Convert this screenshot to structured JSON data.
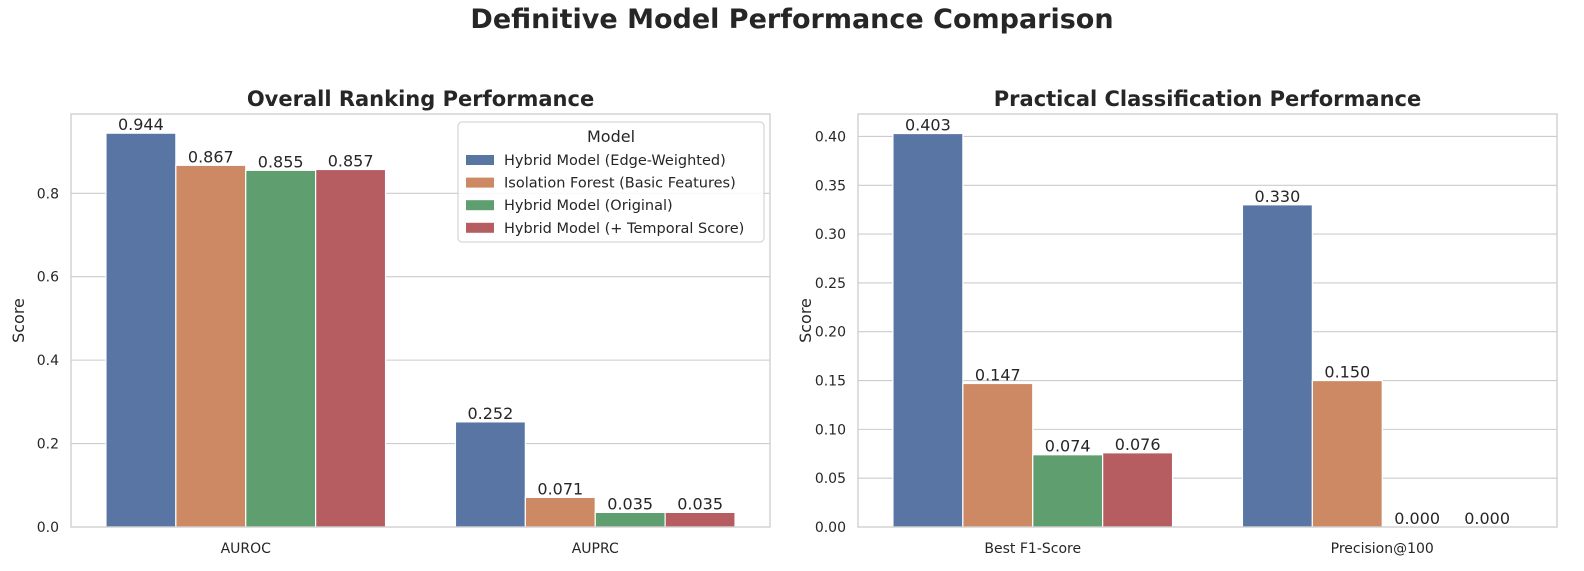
{
  "figure": {
    "title": "Definitive Model Performance Comparison"
  },
  "colors": {
    "series": [
      "#5875a4",
      "#cc8963",
      "#5f9e6e",
      "#b55d60"
    ],
    "grid": "#cccccc",
    "spine": "#cccccc"
  },
  "chart_data": [
    {
      "type": "bar",
      "title": "Overall Ranking Performance",
      "xlabel": "",
      "ylabel": "Score",
      "ylim": [
        0,
        0.99
      ],
      "yticks": [
        0.0,
        0.2,
        0.4,
        0.6,
        0.8
      ],
      "yticklabels": [
        "0.0",
        "0.2",
        "0.4",
        "0.6",
        "0.8"
      ],
      "grid": true,
      "legend": {
        "title": "Model",
        "position": "top-right"
      },
      "categories": [
        "AUROC",
        "AUPRC"
      ],
      "series": [
        {
          "name": "Hybrid Model (Edge-Weighted)",
          "values": [
            0.944,
            0.252
          ],
          "labels": [
            "0.944",
            "0.252"
          ]
        },
        {
          "name": "Isolation Forest (Basic Features)",
          "values": [
            0.867,
            0.071
          ],
          "labels": [
            "0.867",
            "0.071"
          ]
        },
        {
          "name": "Hybrid Model (Original)",
          "values": [
            0.855,
            0.035
          ],
          "labels": [
            "0.855",
            "0.035"
          ]
        },
        {
          "name": "Hybrid Model (+ Temporal Score)",
          "values": [
            0.857,
            0.035
          ],
          "labels": [
            "0.857",
            "0.035"
          ]
        }
      ]
    },
    {
      "type": "bar",
      "title": "Practical Classification Performance",
      "xlabel": "",
      "ylabel": "Score",
      "ylim": [
        0,
        0.423
      ],
      "yticks": [
        0.0,
        0.05,
        0.1,
        0.15,
        0.2,
        0.25,
        0.3,
        0.35,
        0.4
      ],
      "yticklabels": [
        "0.00",
        "0.05",
        "0.10",
        "0.15",
        "0.20",
        "0.25",
        "0.30",
        "0.35",
        "0.40"
      ],
      "grid": true,
      "categories": [
        "Best F1-Score",
        "Precision@100"
      ],
      "series": [
        {
          "name": "Hybrid Model (Edge-Weighted)",
          "values": [
            0.403,
            0.33
          ],
          "labels": [
            "0.403",
            "0.330"
          ]
        },
        {
          "name": "Isolation Forest (Basic Features)",
          "values": [
            0.147,
            0.15
          ],
          "labels": [
            "0.147",
            "0.150"
          ]
        },
        {
          "name": "Hybrid Model (Original)",
          "values": [
            0.074,
            0.0
          ],
          "labels": [
            "0.074",
            "0.000"
          ]
        },
        {
          "name": "Hybrid Model (+ Temporal Score)",
          "values": [
            0.076,
            0.0
          ],
          "labels": [
            "0.076",
            "0.000"
          ]
        }
      ]
    }
  ]
}
